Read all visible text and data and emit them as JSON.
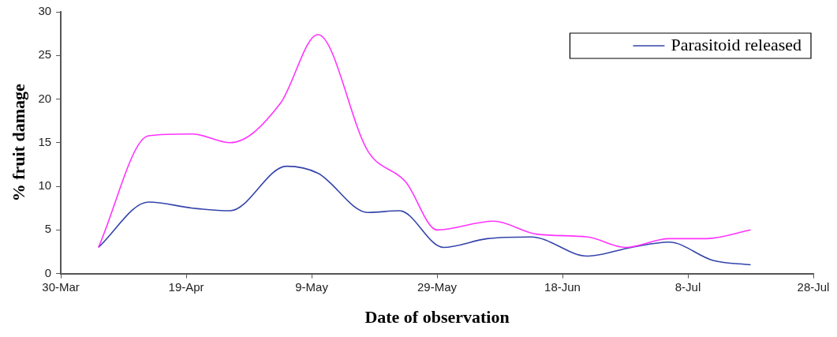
{
  "chart_data": {
    "type": "line",
    "xlabel": "Date of observation",
    "ylabel": "% fruit damage",
    "x": [
      "--04-05",
      "--04-13",
      "--04-20",
      "--04-26",
      "--05-04",
      "--05-10",
      "--05-18",
      "--05-24",
      "--05-29",
      "--06-07",
      "--06-14",
      "--06-22",
      "--06-28",
      "--07-05",
      "--07-11",
      "--07-18"
    ],
    "series": [
      {
        "color": "#ff33ff",
        "values": [
          3,
          15.8,
          16,
          15,
          19.5,
          27.4,
          14,
          10.5,
          5,
          6,
          4.5,
          4.2,
          3,
          4,
          4,
          5
        ]
      },
      {
        "name": "Parasitoid released",
        "color": "#3344aa",
        "x": [
          "--04-05",
          "--04-13",
          "--04-20",
          "--04-26",
          "--05-05",
          "--05-10",
          "--05-18",
          "--05-23",
          "--05-30",
          "--06-06",
          "--06-13",
          "--06-22",
          "--06-29",
          "--07-05",
          "--07-12",
          "--07-18"
        ],
        "values": [
          3,
          8.2,
          7.5,
          7.2,
          12.3,
          11.5,
          7,
          7.2,
          3,
          4,
          4.2,
          2,
          3,
          3.6,
          1.5,
          1
        ]
      }
    ],
    "xlim": [
      "--03-30",
      "--07-28"
    ],
    "xticks": [
      {
        "value": "--03-30",
        "label": "30-Mar"
      },
      {
        "value": "--04-19",
        "label": "19-Apr"
      },
      {
        "value": "--05-09",
        "label": "9-May"
      },
      {
        "value": "--05-29",
        "label": "29-May"
      },
      {
        "value": "--06-18",
        "label": "18-Jun"
      },
      {
        "value": "--07-08",
        "label": "8-Jul"
      },
      {
        "value": "--07-28",
        "label": "28-Jul"
      }
    ],
    "ylim": [
      0,
      30
    ],
    "yticks": [
      0,
      5,
      10,
      15,
      20,
      25,
      30
    ],
    "grid": false,
    "legend": "top right",
    "marker": "none",
    "line_style": "solid"
  }
}
